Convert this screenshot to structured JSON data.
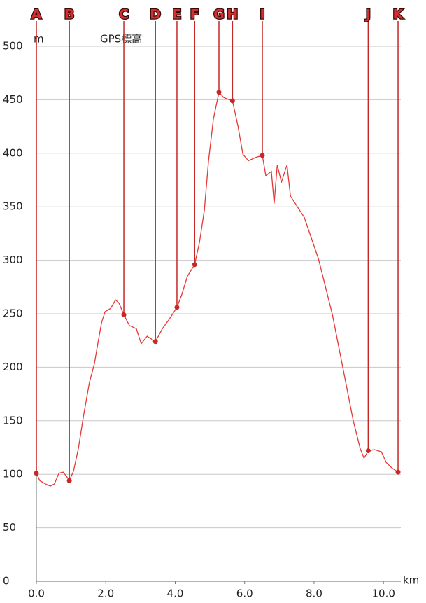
{
  "chart_data": {
    "type": "line",
    "title": "GPS標高",
    "y_unit": "m",
    "x_unit": "km",
    "xlim": [
      0,
      10.5
    ],
    "ylim": [
      0,
      500
    ],
    "xticks": [
      {
        "value": 0,
        "label": "0.0"
      },
      {
        "value": 2,
        "label": "2.0"
      },
      {
        "value": 4,
        "label": "4.0"
      },
      {
        "value": 6,
        "label": "6.0"
      },
      {
        "value": 8,
        "label": "8.0"
      },
      {
        "value": 10,
        "label": "10.0"
      }
    ],
    "yticks": [
      0,
      50,
      100,
      150,
      200,
      250,
      300,
      350,
      400,
      450,
      500
    ],
    "grid": true,
    "series": [
      {
        "name": "GPS標高",
        "color": "#e53935",
        "x": [
          0,
          0.1,
          0.26,
          0.4,
          0.52,
          0.65,
          0.77,
          0.87,
          0.95,
          1.07,
          1.21,
          1.37,
          1.53,
          1.67,
          1.77,
          1.88,
          1.98,
          2.14,
          2.28,
          2.38,
          2.52,
          2.68,
          2.88,
          3.02,
          3.19,
          3.43,
          3.63,
          3.83,
          4.05,
          4.19,
          4.35,
          4.56,
          4.7,
          4.84,
          4.96,
          5.1,
          5.26,
          5.4,
          5.65,
          5.81,
          5.95,
          6.11,
          6.31,
          6.51,
          6.61,
          6.77,
          6.85,
          6.94,
          7.06,
          7.22,
          7.32,
          7.52,
          7.72,
          7.92,
          8.13,
          8.33,
          8.53,
          8.73,
          8.93,
          9.13,
          9.33,
          9.44,
          9.56,
          9.74,
          9.94,
          10.08,
          10.24,
          10.42
        ],
        "values": [
          101,
          94,
          91,
          89,
          91,
          101,
          102,
          98,
          94,
          103,
          124,
          157,
          186,
          203,
          222,
          242,
          252,
          255,
          263,
          260,
          249,
          239,
          236,
          222,
          229,
          224,
          236,
          245,
          256,
          268,
          285,
          296,
          317,
          347,
          393,
          432,
          457,
          452,
          449,
          425,
          399,
          393,
          396,
          398,
          379,
          383,
          353,
          389,
          373,
          389,
          360,
          350,
          340,
          321,
          301,
          275,
          249,
          216,
          183,
          150,
          124,
          115,
          122,
          123,
          121,
          111,
          106,
          102
        ]
      }
    ],
    "waypoints": {
      "color": "#c62828",
      "labels": [
        "A",
        "B",
        "C",
        "D",
        "E",
        "F",
        "G",
        "H",
        "I",
        "J",
        "K"
      ],
      "x": [
        0,
        0.95,
        2.52,
        3.43,
        4.05,
        4.56,
        5.26,
        5.65,
        6.51,
        9.56,
        10.42
      ],
      "values": [
        101,
        94,
        249,
        224,
        256,
        296,
        457,
        449,
        398,
        122,
        102
      ]
    }
  }
}
